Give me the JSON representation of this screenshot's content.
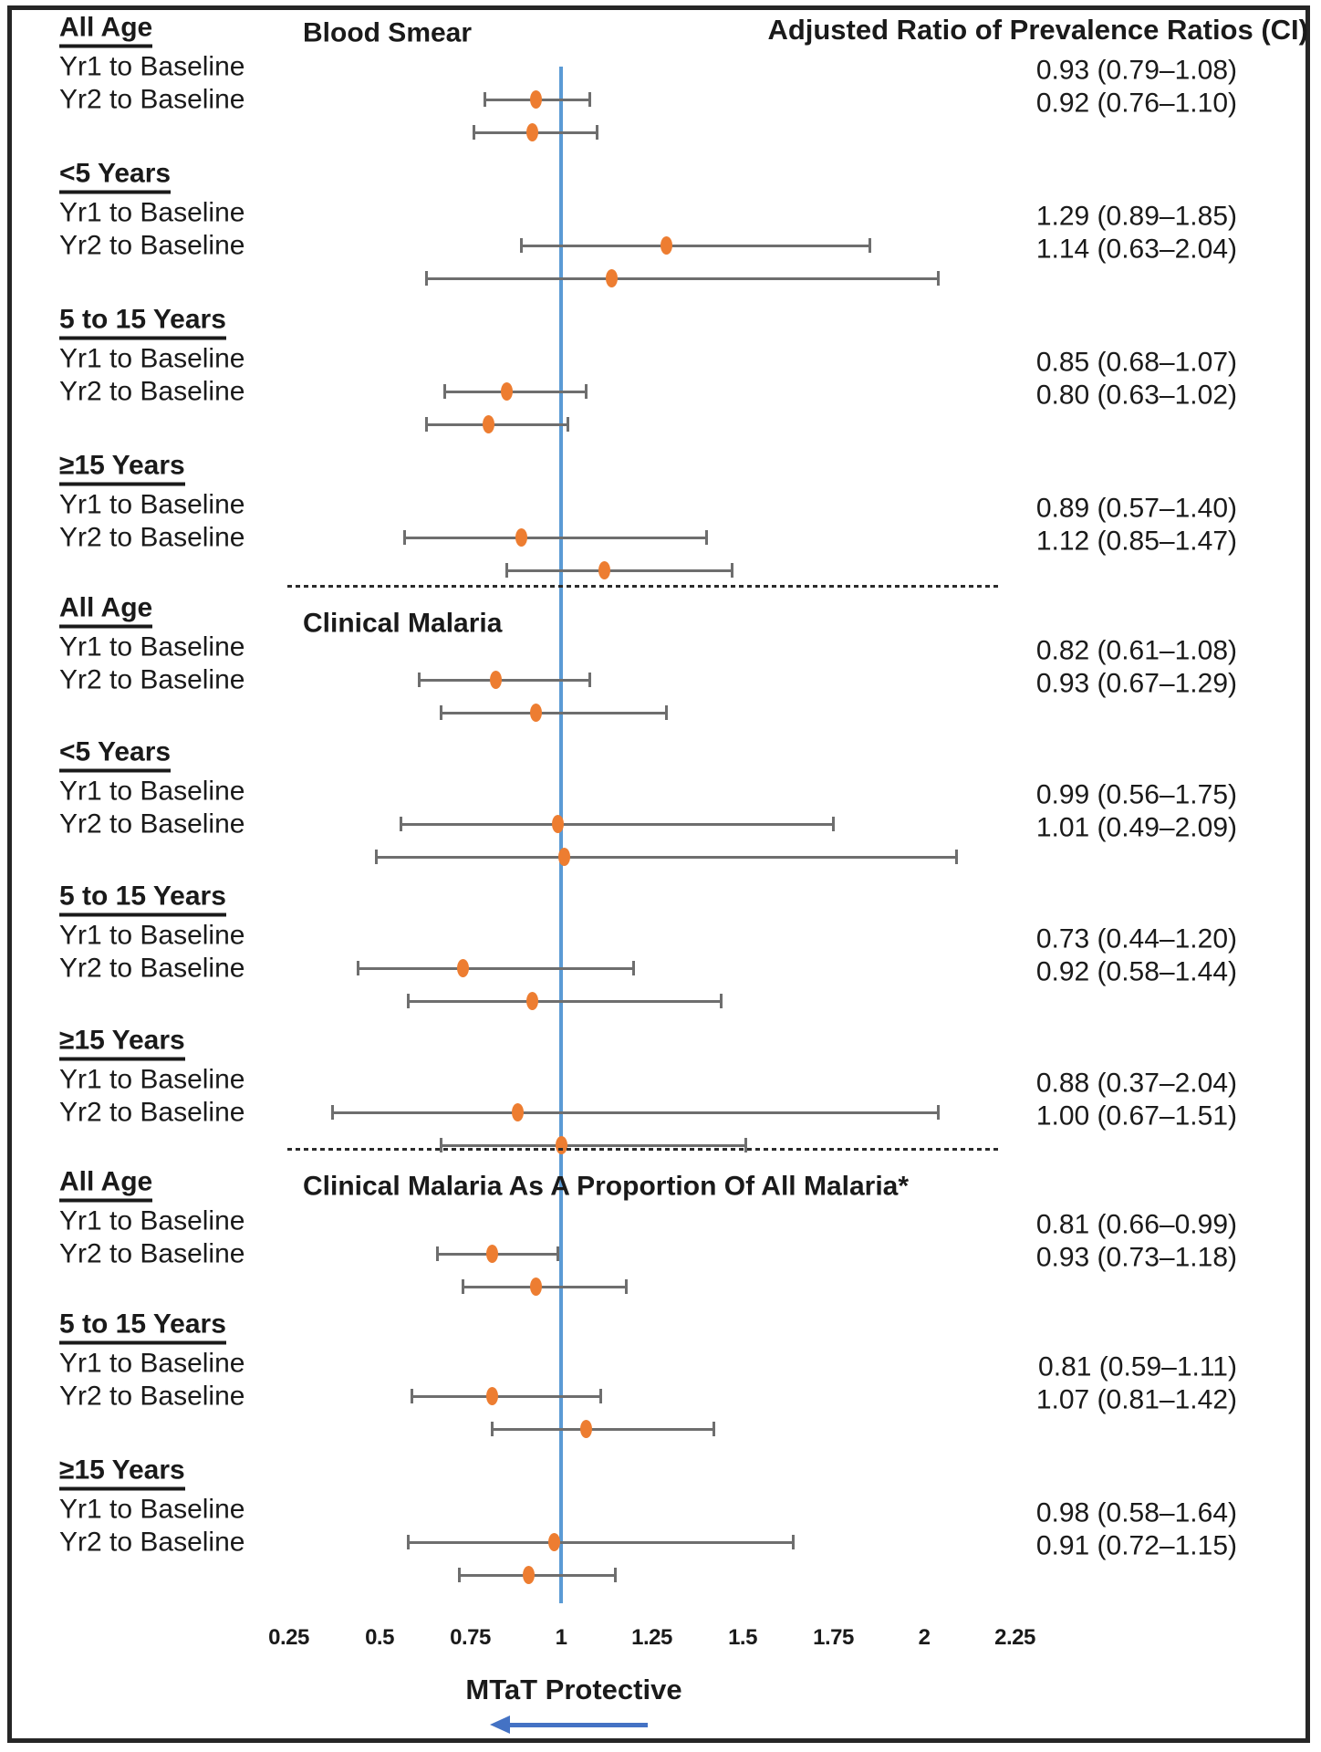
{
  "chart_data": {
    "type": "forest",
    "value_column_header": "Adjusted Ratio of Prevalence Ratios (CI)",
    "x_axis": {
      "tick_labels": [
        "0.25",
        "0.5",
        "0.75",
        "1",
        "1.25",
        "1.5",
        "1.75",
        "2",
        "2.25"
      ],
      "tick_values": [
        0.25,
        0.5,
        0.75,
        1,
        1.25,
        1.5,
        1.75,
        2,
        2.25
      ],
      "range": [
        0.1,
        2.45
      ],
      "reference_value": 1,
      "grid": false
    },
    "footer": {
      "label": "MTaT Protective",
      "arrow_icon": "left-arrow-icon",
      "arrow_direction": "left"
    },
    "sections": [
      {
        "title": "Blood Smear",
        "groups": [
          {
            "age": "All Age",
            "rows": [
              {
                "label": "Yr1 to Baseline",
                "estimate": 0.93,
                "ci_low": 0.79,
                "ci_high": 1.08,
                "text": "0.93 (0.79–1.08)"
              },
              {
                "label": "Yr2 to Baseline",
                "estimate": 0.92,
                "ci_low": 0.76,
                "ci_high": 1.1,
                "text": "0.92 (0.76–1.10)"
              }
            ]
          },
          {
            "age": "<5 Years",
            "rows": [
              {
                "label": "Yr1 to Baseline",
                "estimate": 1.29,
                "ci_low": 0.89,
                "ci_high": 1.85,
                "text": "1.29 (0.89–1.85)"
              },
              {
                "label": "Yr2 to Baseline",
                "estimate": 1.14,
                "ci_low": 0.63,
                "ci_high": 2.04,
                "text": "1.14 (0.63–2.04)"
              }
            ]
          },
          {
            "age": "5 to 15 Years",
            "rows": [
              {
                "label": "Yr1 to Baseline",
                "estimate": 0.85,
                "ci_low": 0.68,
                "ci_high": 1.07,
                "text": "0.85 (0.68–1.07)"
              },
              {
                "label": "Yr2 to Baseline",
                "estimate": 0.8,
                "ci_low": 0.63,
                "ci_high": 1.02,
                "text": "0.80 (0.63–1.02)"
              }
            ]
          },
          {
            "age": "≥15 Years",
            "rows": [
              {
                "label": "Yr1 to Baseline",
                "estimate": 0.89,
                "ci_low": 0.57,
                "ci_high": 1.4,
                "text": "0.89 (0.57–1.40)"
              },
              {
                "label": "Yr2 to Baseline",
                "estimate": 1.12,
                "ci_low": 0.85,
                "ci_high": 1.47,
                "text": "1.12 (0.85–1.47)"
              }
            ]
          }
        ]
      },
      {
        "title": "Clinical Malaria",
        "groups": [
          {
            "age": "All Age",
            "rows": [
              {
                "label": "Yr1 to Baseline",
                "estimate": 0.82,
                "ci_low": 0.61,
                "ci_high": 1.08,
                "text": "0.82 (0.61–1.08)"
              },
              {
                "label": "Yr2 to Baseline",
                "estimate": 0.93,
                "ci_low": 0.67,
                "ci_high": 1.29,
                "text": "0.93 (0.67–1.29)"
              }
            ]
          },
          {
            "age": "<5 Years",
            "rows": [
              {
                "label": "Yr1 to Baseline",
                "estimate": 0.99,
                "ci_low": 0.56,
                "ci_high": 1.75,
                "text": "0.99 (0.56–1.75)"
              },
              {
                "label": "Yr2 to Baseline",
                "estimate": 1.01,
                "ci_low": 0.49,
                "ci_high": 2.09,
                "text": "1.01 (0.49–2.09)"
              }
            ]
          },
          {
            "age": "5 to 15 Years",
            "rows": [
              {
                "label": "Yr1 to Baseline",
                "estimate": 0.73,
                "ci_low": 0.44,
                "ci_high": 1.2,
                "text": "0.73 (0.44–1.20)"
              },
              {
                "label": "Yr2 to Baseline",
                "estimate": 0.92,
                "ci_low": 0.58,
                "ci_high": 1.44,
                "text": "0.92 (0.58–1.44)"
              }
            ]
          },
          {
            "age": "≥15 Years",
            "rows": [
              {
                "label": "Yr1 to Baseline",
                "estimate": 0.88,
                "ci_low": 0.37,
                "ci_high": 2.04,
                "text": "0.88 (0.37–2.04)"
              },
              {
                "label": "Yr2 to Baseline",
                "estimate": 1.0,
                "ci_low": 0.67,
                "ci_high": 1.51,
                "text": "1.00 (0.67–1.51)"
              }
            ]
          }
        ]
      },
      {
        "title": "Clinical Malaria As A Proportion Of All Malaria*",
        "groups": [
          {
            "age": "All Age",
            "rows": [
              {
                "label": "Yr1 to Baseline",
                "estimate": 0.81,
                "ci_low": 0.66,
                "ci_high": 0.99,
                "text": "0.81 (0.66–0.99)"
              },
              {
                "label": "Yr2 to Baseline",
                "estimate": 0.93,
                "ci_low": 0.73,
                "ci_high": 1.18,
                "text": "0.93 (0.73–1.18)"
              }
            ]
          },
          {
            "age": "5 to 15 Years",
            "rows": [
              {
                "label": "Yr1 to Baseline",
                "estimate": 0.81,
                "ci_low": 0.59,
                "ci_high": 1.11,
                "text": "0.81 (0.59–1.11)"
              },
              {
                "label": "Yr2 to Baseline",
                "estimate": 1.07,
                "ci_low": 0.81,
                "ci_high": 1.42,
                "text": "1.07 (0.81–1.42)"
              }
            ]
          },
          {
            "age": "≥15 Years",
            "rows": [
              {
                "label": "Yr1 to Baseline",
                "estimate": 0.98,
                "ci_low": 0.58,
                "ci_high": 1.64,
                "text": "0.98 (0.58–1.64)"
              },
              {
                "label": "Yr2 to Baseline",
                "estimate": 0.91,
                "ci_low": 0.72,
                "ci_high": 1.15,
                "text": "0.91 (0.72–1.15)"
              }
            ]
          }
        ]
      }
    ],
    "colors": {
      "marker": "#ED7D31",
      "error_bar": "#6e6e6e",
      "reference_line": "#5B9BD5",
      "arrow": "#4472C4",
      "text": "#1a1a1a",
      "border": "#262626"
    }
  }
}
